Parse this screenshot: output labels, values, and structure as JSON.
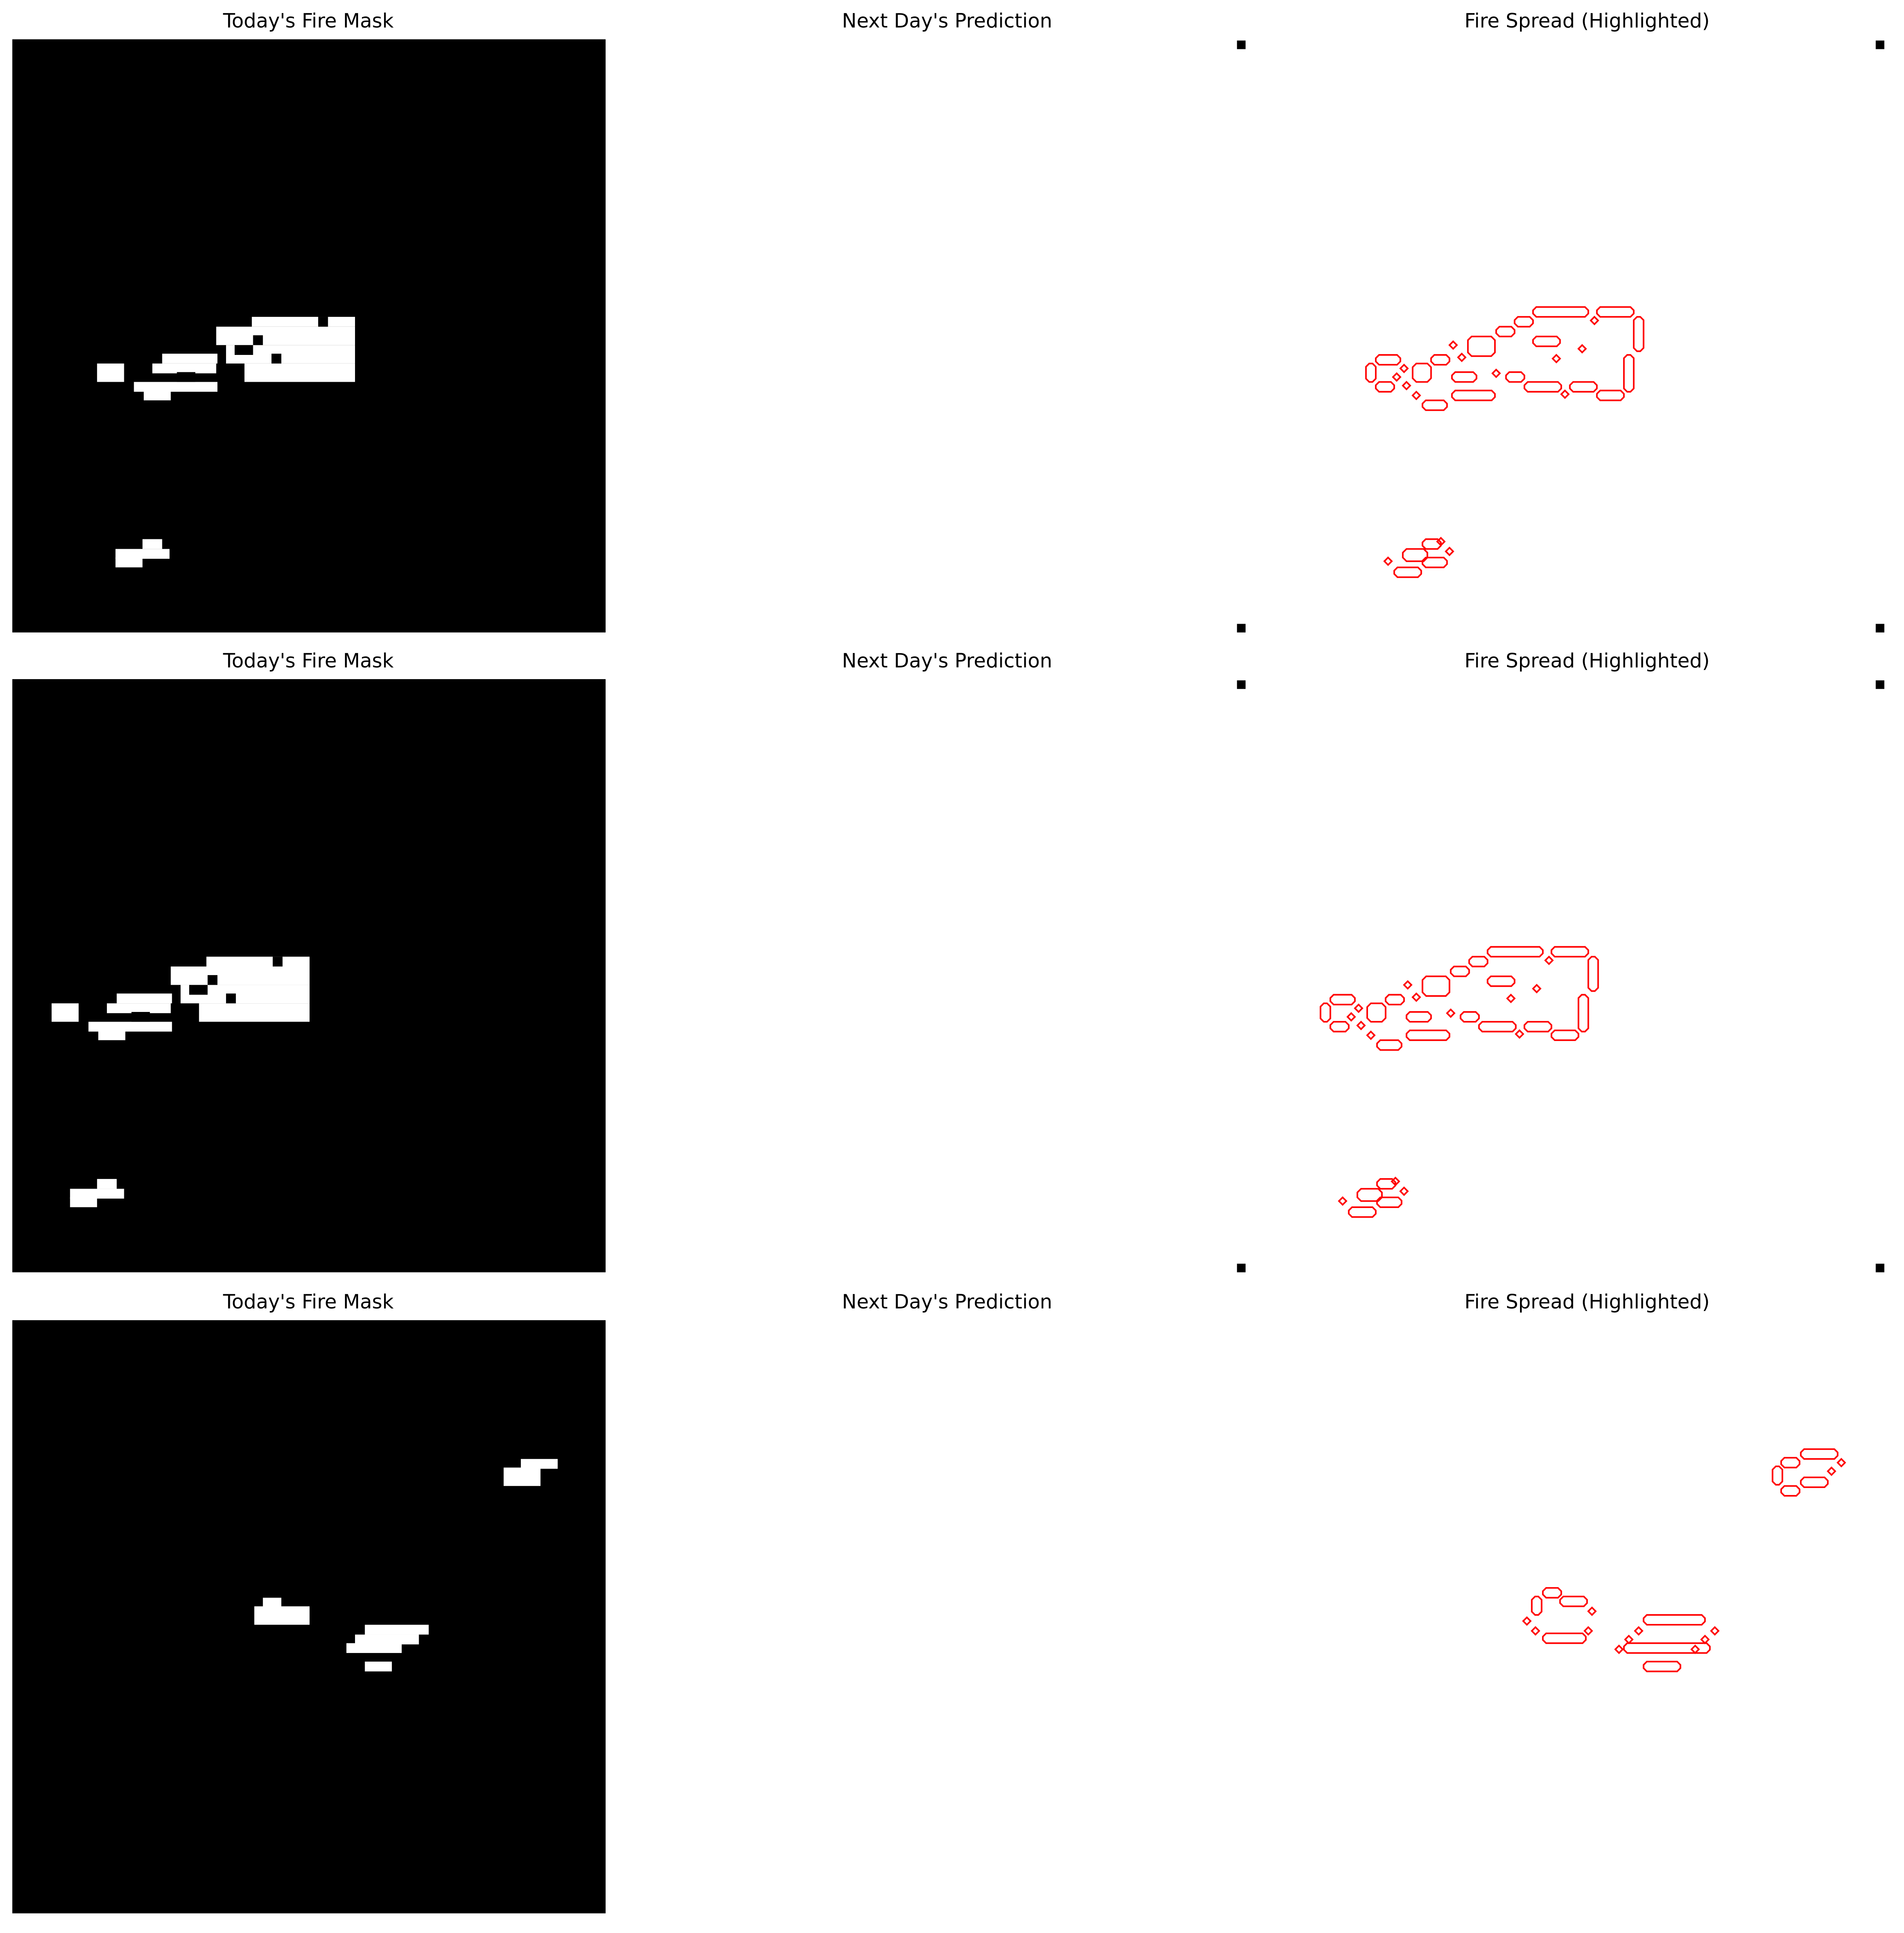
{
  "rows": [
    {
      "titles": [
        "Today's Fire Mask",
        "Next Day's Prediction",
        "Fire Spread (Highlighted)"
      ]
    },
    {
      "titles": [
        "Today's Fire Mask",
        "Next Day's Prediction",
        "Fire Spread (Highlighted)"
      ]
    },
    {
      "titles": [
        "Today's Fire Mask",
        "Next Day's Prediction",
        "Fire Spread (Highlighted)"
      ]
    }
  ]
}
